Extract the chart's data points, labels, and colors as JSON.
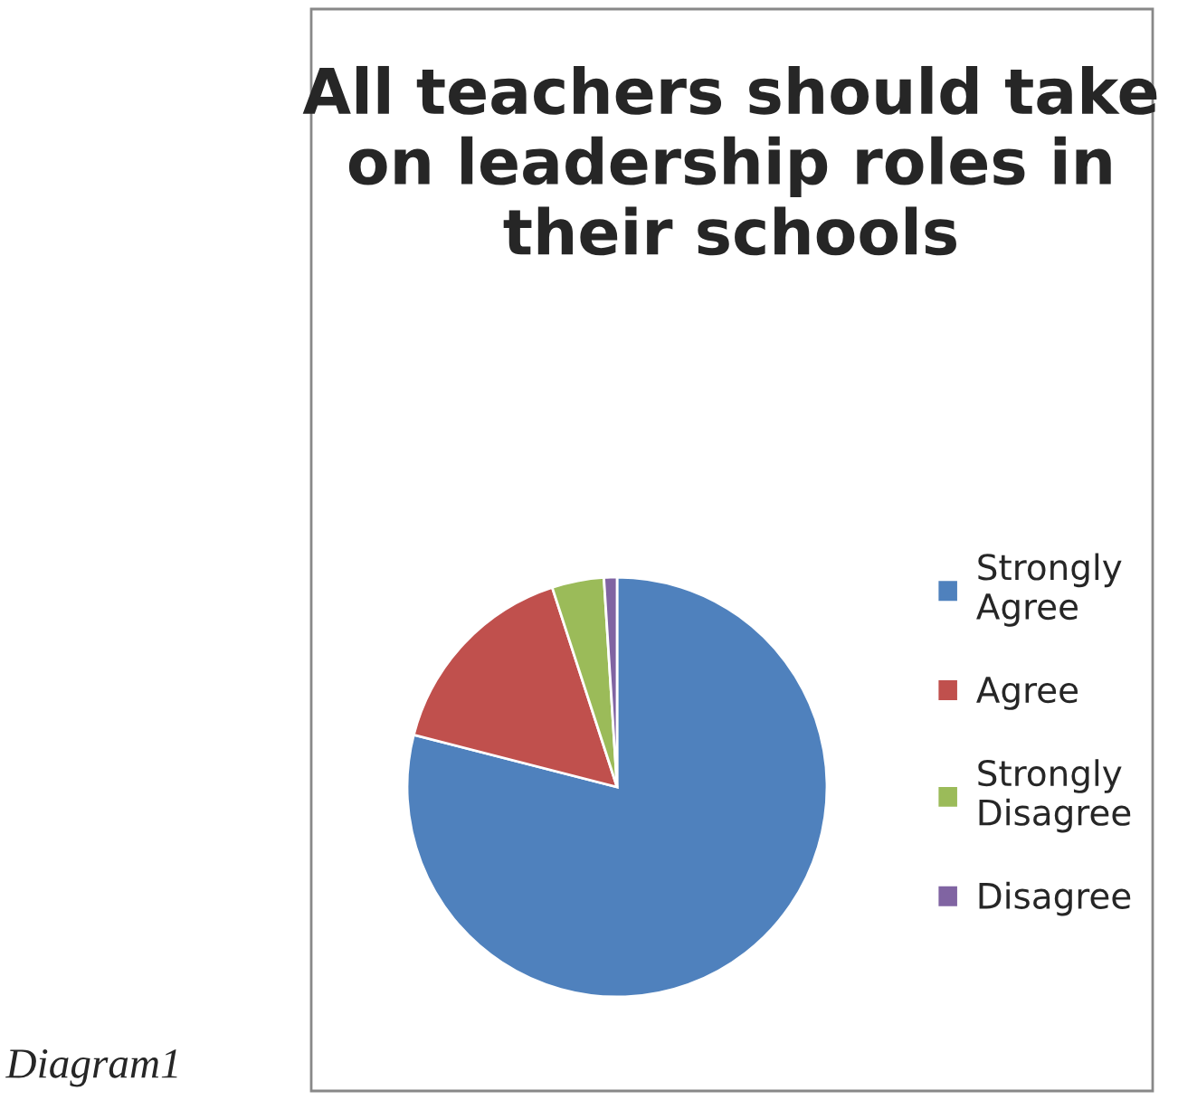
{
  "chart_data": {
    "type": "pie",
    "title": "All teachers should take on leadership roles in their schools",
    "categories": [
      "Strongly Agree",
      "Agree",
      "Strongly Disagree",
      "Disagree"
    ],
    "values": [
      79,
      16,
      4,
      1
    ],
    "colors": [
      "#4f81bd",
      "#c0504d",
      "#9bbb59",
      "#8064a2"
    ],
    "legend": "right",
    "annotations": [
      "Diagram1"
    ]
  }
}
